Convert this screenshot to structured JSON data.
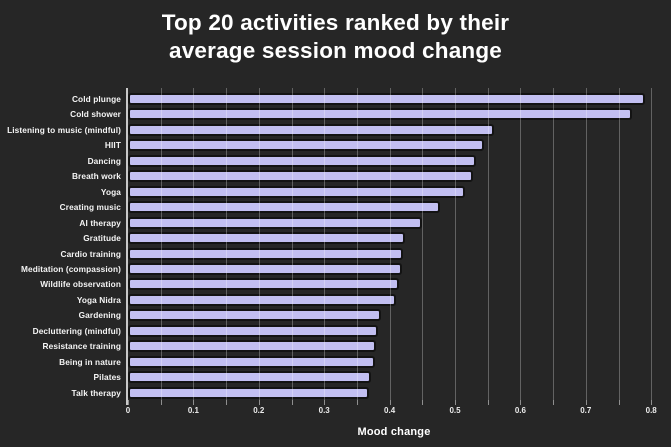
{
  "chart_data": {
    "type": "bar",
    "orientation": "horizontal",
    "title": "Top 20 activities ranked by their average session mood change",
    "title_lines": [
      "Top 20 activities ranked by their",
      "average session mood change"
    ],
    "xlabel": "Mood change",
    "categories": [
      "Cold plunge",
      "Cold shower",
      "Listening to music (mindful)",
      "HIIT",
      "Dancing",
      "Breath work",
      "Yoga",
      "Creating music",
      "AI therapy",
      "Gratitude",
      "Cardio training",
      "Meditation (compassion)",
      "Wildlife observation",
      "Yoga Nidra",
      "Gardening",
      "Decluttering (mindful)",
      "Resistance training",
      "Being in nature",
      "Pilates",
      "Talk therapy"
    ],
    "values": [
      0.79,
      0.77,
      0.56,
      0.545,
      0.532,
      0.527,
      0.516,
      0.477,
      0.45,
      0.423,
      0.421,
      0.419,
      0.414,
      0.41,
      0.387,
      0.383,
      0.379,
      0.377,
      0.372,
      0.368
    ],
    "xlim": [
      0,
      0.8
    ],
    "xtick_labels": [
      "0",
      "0.1",
      "0.2",
      "0.3",
      "0.4",
      "0.5",
      "0.6",
      "0.7",
      "0.8"
    ],
    "xtick_values": [
      0,
      0.1,
      0.2,
      0.3,
      0.4,
      0.5,
      0.6,
      0.7,
      0.8
    ],
    "minor_tick_step": 0.05,
    "gridline_step": 0.05,
    "grid": true,
    "legend": false,
    "colors": {
      "background": "#262626",
      "bar_fill": "#c2bff1",
      "bar_border": "#131313",
      "gridline": "rgba(255,255,255,0.28)",
      "axis_line": "#c9c9c9",
      "tick": "#8f8f8f",
      "tick_label": "#ebebeb",
      "category_label": "#f5f5f5",
      "title_text": "#ffffff"
    }
  }
}
